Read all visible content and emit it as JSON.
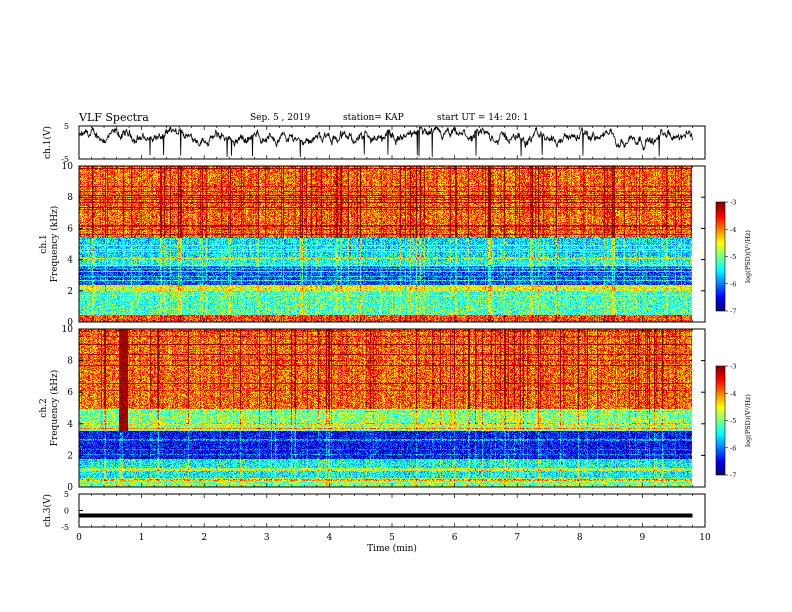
{
  "header": {
    "title": "VLF Spectra",
    "date": "Sep. 5 , 2019",
    "station": "station= KAP",
    "start": "start UT =  14: 20: 1"
  },
  "chart_data": [
    {
      "type": "line",
      "panel": "ch1-waveform",
      "ylabel": "ch.1(V)",
      "ylim": [
        -5,
        5
      ],
      "yticks": [
        "5",
        "-5"
      ],
      "xlim": [
        0,
        10
      ],
      "series": [
        {
          "values_note": "noisy waveform, mostly 0 to 3 V",
          "color": "#000000"
        }
      ]
    },
    {
      "type": "heatmap",
      "panel": "ch1-spectrogram",
      "ylabel": "ch.1",
      "ylabel2": "Frequency (kHz)",
      "ylim": [
        0,
        10
      ],
      "yticks": [
        "0",
        "2",
        "4",
        "6",
        "8",
        "10"
      ],
      "xlim": [
        0,
        9.8
      ],
      "colorbar": {
        "label": "log(PSD)(V²/Hz)",
        "ticks": [
          "-3",
          "-4",
          "-5",
          "-6",
          "-7"
        ],
        "range": [
          -7,
          -3
        ]
      },
      "bands": [
        {
          "from_khz": 0,
          "to_khz": 0.5,
          "level": -3.8
        },
        {
          "from_khz": 0.5,
          "to_khz": 2.0,
          "level": -5.2
        },
        {
          "from_khz": 2.0,
          "to_khz": 2.4,
          "level": -4.6
        },
        {
          "from_khz": 2.4,
          "to_khz": 3.6,
          "level": -6.2
        },
        {
          "from_khz": 3.6,
          "to_khz": 4.2,
          "level": -5.4
        },
        {
          "from_khz": 4.2,
          "to_khz": 5.4,
          "level": -5.6
        },
        {
          "from_khz": 5.4,
          "to_khz": 10,
          "level": -3.9
        }
      ]
    },
    {
      "type": "heatmap",
      "panel": "ch2-spectrogram",
      "ylabel": "ch.2",
      "ylabel2": "Frequency (kHz)",
      "ylim": [
        0,
        10
      ],
      "yticks": [
        "0",
        "2",
        "4",
        "6",
        "8",
        "10"
      ],
      "xlim": [
        0,
        9.8
      ],
      "colorbar": {
        "label": "log(PSD)(V²/Hz)",
        "ticks": [
          "-3",
          "-4",
          "-5",
          "-6",
          "-7"
        ],
        "range": [
          -7,
          -3
        ]
      },
      "bands": [
        {
          "from_khz": 0,
          "to_khz": 0.6,
          "level": -5.0
        },
        {
          "from_khz": 0.6,
          "to_khz": 1.8,
          "level": -5.5
        },
        {
          "from_khz": 1.8,
          "to_khz": 3.6,
          "level": -6.5
        },
        {
          "from_khz": 3.6,
          "to_khz": 5.0,
          "level": -5.0
        },
        {
          "from_khz": 5.0,
          "to_khz": 10,
          "level": -3.9
        }
      ],
      "burst": {
        "x_min": 0.7,
        "level": -3.1
      }
    },
    {
      "type": "line",
      "panel": "ch3-waveform",
      "ylabel": "ch.3(V)",
      "ylim": [
        -5,
        5
      ],
      "yticks": [
        "5",
        "0",
        "-5"
      ],
      "xlim": [
        0,
        10
      ],
      "xlabel": "Time (min)",
      "xticks": [
        "0",
        "1",
        "2",
        "3",
        "4",
        "5",
        "6",
        "7",
        "8",
        "9",
        "10"
      ],
      "series": [
        {
          "constant": -1.5,
          "xlim": [
            0,
            9.8
          ],
          "color": "#000000"
        }
      ]
    }
  ]
}
